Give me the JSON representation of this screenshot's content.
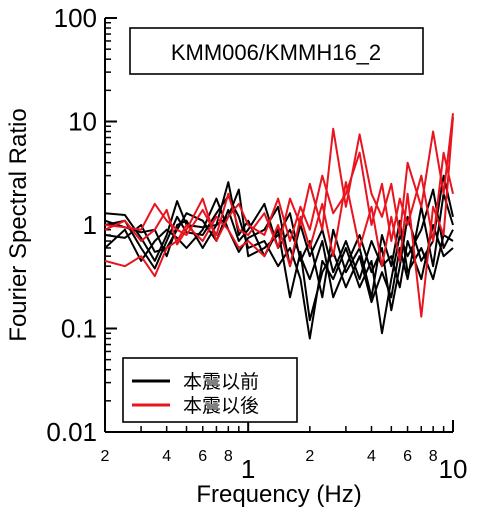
{
  "chart_data": {
    "type": "line",
    "title": "KMM006/KMMH16_2",
    "xlabel": "Frequency (Hz)",
    "ylabel": "Fourier Spectral Ratio",
    "xscale": "log",
    "yscale": "log",
    "xlim": [
      0.2,
      10
    ],
    "ylim": [
      0.01,
      100
    ],
    "grid": false,
    "legend_position": "bottom-left",
    "y_tick_labels": [
      "0.01",
      "0.1",
      "1",
      "10",
      "100"
    ],
    "x_tick_labels_major": [
      "1",
      "10"
    ],
    "x_tick_labels_minor": [
      "2",
      "4",
      "6",
      "8",
      "2",
      "4",
      "6",
      "8"
    ],
    "series": [
      {
        "name": "本震以前",
        "color": "#000000",
        "curves": [
          {
            "x": [
              0.2,
              0.25,
              0.3,
              0.35,
              0.4,
              0.45,
              0.5,
              0.6,
              0.7,
              0.8,
              0.9,
              1.0,
              1.2,
              1.4,
              1.6,
              1.8,
              2.0,
              2.3,
              2.6,
              3.0,
              3.5,
              4.0,
              4.5,
              5.0,
              5.5,
              6.0,
              7.0,
              8.0,
              9.0,
              10.0
            ],
            "y": [
              1.3,
              1.25,
              0.75,
              0.45,
              0.8,
              1.7,
              1.0,
              0.95,
              1.0,
              2.6,
              0.8,
              1.1,
              0.5,
              0.9,
              0.2,
              0.55,
              0.12,
              0.35,
              0.55,
              0.25,
              0.5,
              0.18,
              0.35,
              0.2,
              0.6,
              0.3,
              1.5,
              0.4,
              2.0,
              1.0
            ]
          },
          {
            "x": [
              0.2,
              0.25,
              0.3,
              0.35,
              0.4,
              0.45,
              0.5,
              0.6,
              0.7,
              0.8,
              0.9,
              1.0,
              1.2,
              1.4,
              1.6,
              1.8,
              2.0,
              2.3,
              2.6,
              3.0,
              3.5,
              4.0,
              4.5,
              5.0,
              5.5,
              6.0,
              7.0,
              8.0,
              9.0,
              10.0
            ],
            "y": [
              1.0,
              1.1,
              0.6,
              0.38,
              0.7,
              1.2,
              0.85,
              0.8,
              1.3,
              1.9,
              1.2,
              0.6,
              0.7,
              0.4,
              0.6,
              0.3,
              0.08,
              0.45,
              0.3,
              0.6,
              0.25,
              0.45,
              0.09,
              0.3,
              0.8,
              0.5,
              0.9,
              2.2,
              0.6,
              0.9
            ]
          },
          {
            "x": [
              0.2,
              0.25,
              0.3,
              0.35,
              0.4,
              0.45,
              0.5,
              0.6,
              0.7,
              0.8,
              0.9,
              1.0,
              1.2,
              1.4,
              1.6,
              1.8,
              2.0,
              2.3,
              2.6,
              3.0,
              3.5,
              4.0,
              4.5,
              5.0,
              5.5,
              6.0,
              7.0,
              8.0,
              9.0,
              10.0
            ],
            "y": [
              0.8,
              0.75,
              1.0,
              0.55,
              0.6,
              0.9,
              1.3,
              1.1,
              0.7,
              1.4,
              0.7,
              0.9,
              1.6,
              0.6,
              0.9,
              0.5,
              0.3,
              0.7,
              0.2,
              0.4,
              0.8,
              0.35,
              0.6,
              0.15,
              0.4,
              1.2,
              0.45,
              0.7,
              3.0,
              1.2
            ]
          },
          {
            "x": [
              0.2,
              0.25,
              0.3,
              0.35,
              0.4,
              0.45,
              0.5,
              0.6,
              0.7,
              0.8,
              0.9,
              1.0,
              1.2,
              1.4,
              1.6,
              1.8,
              2.0,
              2.3,
              2.6,
              3.0,
              3.5,
              4.0,
              4.5,
              5.0,
              5.5,
              6.0,
              7.0,
              8.0,
              9.0,
              10.0
            ],
            "y": [
              0.6,
              0.9,
              0.45,
              0.7,
              0.9,
              0.75,
              0.6,
              0.9,
              1.8,
              0.9,
              0.55,
              0.75,
              0.9,
              1.5,
              0.4,
              1.0,
              0.5,
              0.9,
              0.35,
              0.7,
              0.3,
              0.7,
              0.4,
              0.5,
              0.25,
              0.7,
              0.3,
              1.0,
              0.5,
              0.6
            ]
          },
          {
            "x": [
              0.2,
              0.25,
              0.3,
              0.35,
              0.4,
              0.45,
              0.5,
              0.6,
              0.7,
              0.8,
              0.9,
              1.0,
              1.2,
              1.4,
              1.6,
              1.8,
              2.0,
              2.3,
              2.6,
              3.0,
              3.5,
              4.0,
              4.5,
              5.0,
              5.5,
              6.0,
              7.0,
              8.0,
              9.0,
              10.0
            ],
            "y": [
              1.1,
              0.95,
              0.85,
              0.9,
              0.5,
              1.0,
              1.1,
              0.6,
              1.0,
              1.2,
              2.2,
              0.5,
              0.6,
              0.8,
              1.3,
              0.45,
              0.7,
              0.2,
              0.9,
              0.35,
              0.6,
              0.2,
              0.8,
              0.4,
              1.1,
              0.35,
              0.6,
              0.3,
              0.8,
              0.7
            ]
          }
        ]
      },
      {
        "name": "本震以後",
        "color": "#e8141e",
        "curves": [
          {
            "x": [
              0.2,
              0.25,
              0.3,
              0.35,
              0.4,
              0.45,
              0.5,
              0.6,
              0.7,
              0.8,
              0.9,
              1.0,
              1.2,
              1.4,
              1.6,
              1.8,
              2.0,
              2.3,
              2.6,
              3.0,
              3.5,
              4.0,
              4.5,
              5.0,
              5.5,
              6.0,
              7.0,
              8.0,
              9.0,
              10.0
            ],
            "y": [
              1.0,
              0.95,
              0.9,
              1.6,
              1.1,
              0.9,
              0.8,
              1.4,
              0.8,
              2.0,
              0.9,
              0.8,
              1.3,
              0.6,
              1.8,
              1.0,
              2.5,
              0.9,
              8.5,
              1.5,
              7.5,
              2.0,
              1.2,
              2.5,
              0.8,
              4.0,
              1.5,
              8.0,
              2.0,
              12.0
            ]
          },
          {
            "x": [
              0.2,
              0.25,
              0.3,
              0.35,
              0.4,
              0.45,
              0.5,
              0.6,
              0.7,
              0.8,
              0.9,
              1.0,
              1.2,
              1.4,
              1.6,
              1.8,
              2.0,
              2.3,
              2.6,
              3.0,
              3.5,
              4.0,
              4.5,
              5.0,
              5.5,
              6.0,
              7.0,
              8.0,
              9.0,
              10.0
            ],
            "y": [
              0.45,
              0.4,
              0.5,
              0.32,
              0.6,
              0.7,
              1.0,
              0.7,
              1.2,
              0.9,
              0.6,
              0.7,
              0.5,
              1.0,
              0.4,
              1.2,
              0.6,
              1.6,
              0.5,
              2.6,
              0.6,
              1.5,
              0.4,
              1.2,
              0.45,
              2.0,
              0.13,
              1.5,
              0.8,
              11.0
            ]
          },
          {
            "x": [
              0.2,
              0.25,
              0.3,
              0.35,
              0.4,
              0.45,
              0.5,
              0.6,
              0.7,
              0.8,
              0.9,
              1.0,
              1.2,
              1.4,
              1.6,
              1.8,
              2.0,
              2.3,
              2.6,
              3.0,
              3.5,
              4.0,
              4.5,
              5.0,
              5.5,
              6.0,
              7.0,
              8.0,
              9.0,
              10.0
            ],
            "y": [
              0.9,
              1.1,
              0.7,
              0.9,
              1.4,
              0.65,
              0.9,
              1.8,
              0.7,
              1.2,
              1.6,
              1.0,
              0.8,
              1.8,
              0.7,
              1.5,
              0.9,
              3.0,
              1.3,
              2.0,
              5.0,
              1.0,
              2.5,
              0.7,
              1.8,
              1.0,
              3.0,
              0.7,
              5.0,
              2.0
            ]
          }
        ]
      }
    ]
  }
}
